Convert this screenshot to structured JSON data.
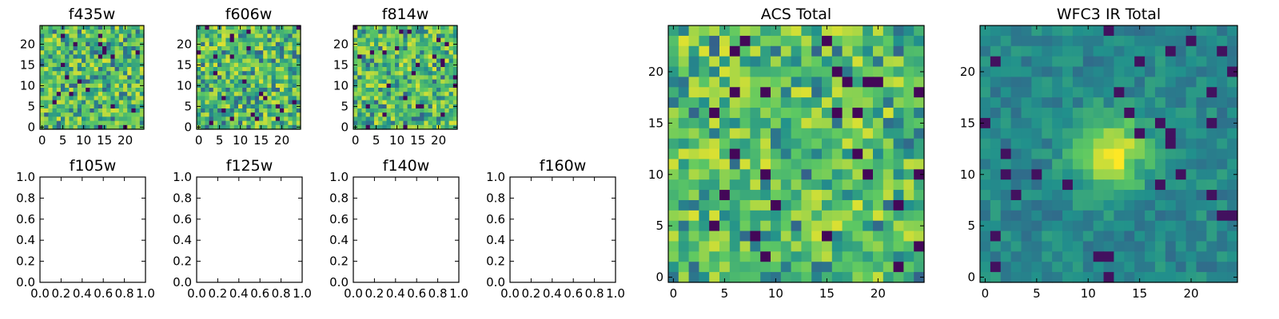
{
  "figure": {
    "panels": [
      {
        "id": "f435w",
        "title": "f435w",
        "kind": "image",
        "xticks": [
          "0",
          "5",
          "10",
          "15",
          "20"
        ],
        "yticks": [
          "0",
          "5",
          "10",
          "15",
          "20"
        ],
        "seed": 11,
        "peak": false
      },
      {
        "id": "f606w",
        "title": "f606w",
        "kind": "image",
        "xticks": [
          "0",
          "5",
          "10",
          "15",
          "20"
        ],
        "yticks": [
          "0",
          "5",
          "10",
          "15",
          "20"
        ],
        "seed": 23,
        "peak": false
      },
      {
        "id": "f814w",
        "title": "f814w",
        "kind": "image",
        "xticks": [
          "0",
          "5",
          "10",
          "15",
          "20"
        ],
        "yticks": [
          "0",
          "5",
          "10",
          "15",
          "20"
        ],
        "seed": 37,
        "peak": false
      },
      {
        "id": "f105w",
        "title": "f105w",
        "kind": "empty",
        "xticks": [
          "0.0",
          "0.2",
          "0.4",
          "0.6",
          "0.8",
          "1.0"
        ],
        "yticks": [
          "0.0",
          "0.2",
          "0.4",
          "0.6",
          "0.8",
          "1.0"
        ]
      },
      {
        "id": "f125w",
        "title": "f125w",
        "kind": "empty",
        "xticks": [
          "0.0",
          "0.2",
          "0.4",
          "0.6",
          "0.8",
          "1.0"
        ],
        "yticks": [
          "0.0",
          "0.2",
          "0.4",
          "0.6",
          "0.8",
          "1.0"
        ]
      },
      {
        "id": "f140w",
        "title": "f140w",
        "kind": "empty",
        "xticks": [
          "0.0",
          "0.2",
          "0.4",
          "0.6",
          "0.8",
          "1.0"
        ],
        "yticks": [
          "0.0",
          "0.2",
          "0.4",
          "0.6",
          "0.8",
          "1.0"
        ]
      },
      {
        "id": "f160w",
        "title": "f160w",
        "kind": "empty",
        "xticks": [
          "0.0",
          "0.2",
          "0.4",
          "0.6",
          "0.8",
          "1.0"
        ],
        "yticks": [
          "0.0",
          "0.2",
          "0.4",
          "0.6",
          "0.8",
          "1.0"
        ]
      },
      {
        "id": "acs-total",
        "title": "ACS Total",
        "kind": "image",
        "xticks": [
          "0",
          "5",
          "10",
          "15",
          "20"
        ],
        "yticks": [
          "0",
          "5",
          "10",
          "15",
          "20"
        ],
        "seed": 53,
        "peak": false
      },
      {
        "id": "wfc3-ir-total",
        "title": "WFC3 IR Total",
        "kind": "image",
        "xticks": [
          "0",
          "5",
          "10",
          "15",
          "20"
        ],
        "yticks": [
          "0",
          "5",
          "10",
          "15",
          "20"
        ],
        "seed": 71,
        "peak": true
      }
    ],
    "colormap": [
      "#440154",
      "#3b528b",
      "#21918c",
      "#5ec962",
      "#fde725"
    ]
  },
  "chart_data": [
    {
      "type": "heatmap",
      "title": "f435w",
      "x_range": [
        -0.5,
        24.5
      ],
      "y_range": [
        -0.5,
        24.5
      ],
      "grid_size": [
        25,
        25
      ],
      "colormap": "viridis"
    },
    {
      "type": "heatmap",
      "title": "f606w",
      "x_range": [
        -0.5,
        24.5
      ],
      "y_range": [
        -0.5,
        24.5
      ],
      "grid_size": [
        25,
        25
      ],
      "colormap": "viridis"
    },
    {
      "type": "heatmap",
      "title": "f814w",
      "x_range": [
        -0.5,
        24.5
      ],
      "y_range": [
        -0.5,
        24.5
      ],
      "grid_size": [
        25,
        25
      ],
      "colormap": "viridis"
    },
    {
      "type": "line",
      "title": "f105w",
      "x_range": [
        0.0,
        1.0
      ],
      "y_range": [
        0.0,
        1.0
      ],
      "series": []
    },
    {
      "type": "line",
      "title": "f125w",
      "x_range": [
        0.0,
        1.0
      ],
      "y_range": [
        0.0,
        1.0
      ],
      "series": []
    },
    {
      "type": "line",
      "title": "f140w",
      "x_range": [
        0.0,
        1.0
      ],
      "y_range": [
        0.0,
        1.0
      ],
      "series": []
    },
    {
      "type": "line",
      "title": "f160w",
      "x_range": [
        0.0,
        1.0
      ],
      "y_range": [
        0.0,
        1.0
      ],
      "series": []
    },
    {
      "type": "heatmap",
      "title": "ACS Total",
      "x_range": [
        -0.5,
        24.5
      ],
      "y_range": [
        -0.5,
        24.5
      ],
      "grid_size": [
        25,
        25
      ],
      "colormap": "viridis"
    },
    {
      "type": "heatmap",
      "title": "WFC3 IR Total",
      "x_range": [
        -0.5,
        24.5
      ],
      "y_range": [
        -0.5,
        24.5
      ],
      "grid_size": [
        25,
        25
      ],
      "colormap": "viridis",
      "peak_center": [
        12,
        12
      ]
    }
  ]
}
